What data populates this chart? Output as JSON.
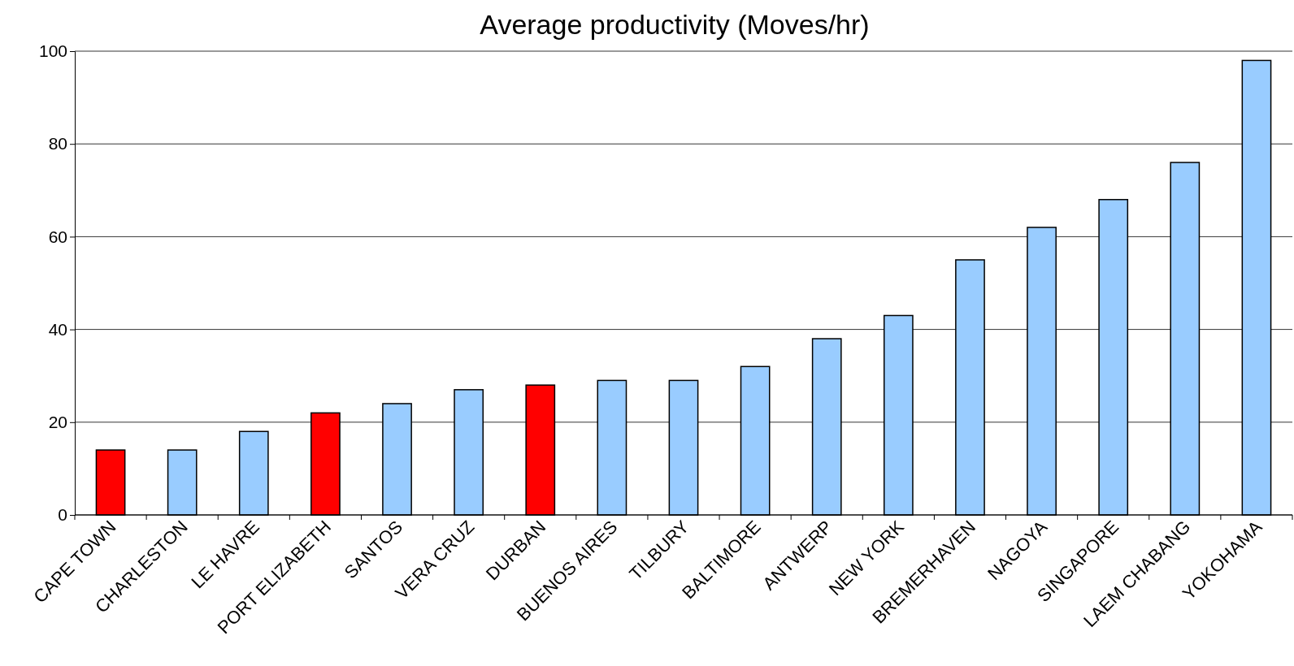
{
  "chart_data": {
    "type": "bar",
    "title": "Average productivity (Moves/hr)",
    "categories": [
      "CAPE TOWN",
      "CHARLESTON",
      "LE HAVRE",
      "PORT ELIZABETH",
      "SANTOS",
      "VERA CRUZ",
      "DURBAN",
      "BUENOS AIRES",
      "TILBURY",
      "BALTIMORE",
      "ANTWERP",
      "NEW YORK",
      "BREMERHAVEN",
      "NAGOYA",
      "SINGAPORE",
      "LAEM CHABANG",
      "YOKOHAMA"
    ],
    "values": [
      14,
      14,
      18,
      22,
      24,
      27,
      28,
      29,
      29,
      32,
      38,
      43,
      55,
      62,
      68,
      76,
      98
    ],
    "colors": [
      "#ff0000",
      "#99ccff",
      "#99ccff",
      "#ff0000",
      "#99ccff",
      "#99ccff",
      "#ff0000",
      "#99ccff",
      "#99ccff",
      "#99ccff",
      "#99ccff",
      "#99ccff",
      "#99ccff",
      "#99ccff",
      "#99ccff",
      "#99ccff",
      "#99ccff"
    ],
    "ylim": [
      0,
      100
    ],
    "yticks": [
      0,
      20,
      40,
      60,
      80,
      100
    ],
    "grid": "y"
  }
}
